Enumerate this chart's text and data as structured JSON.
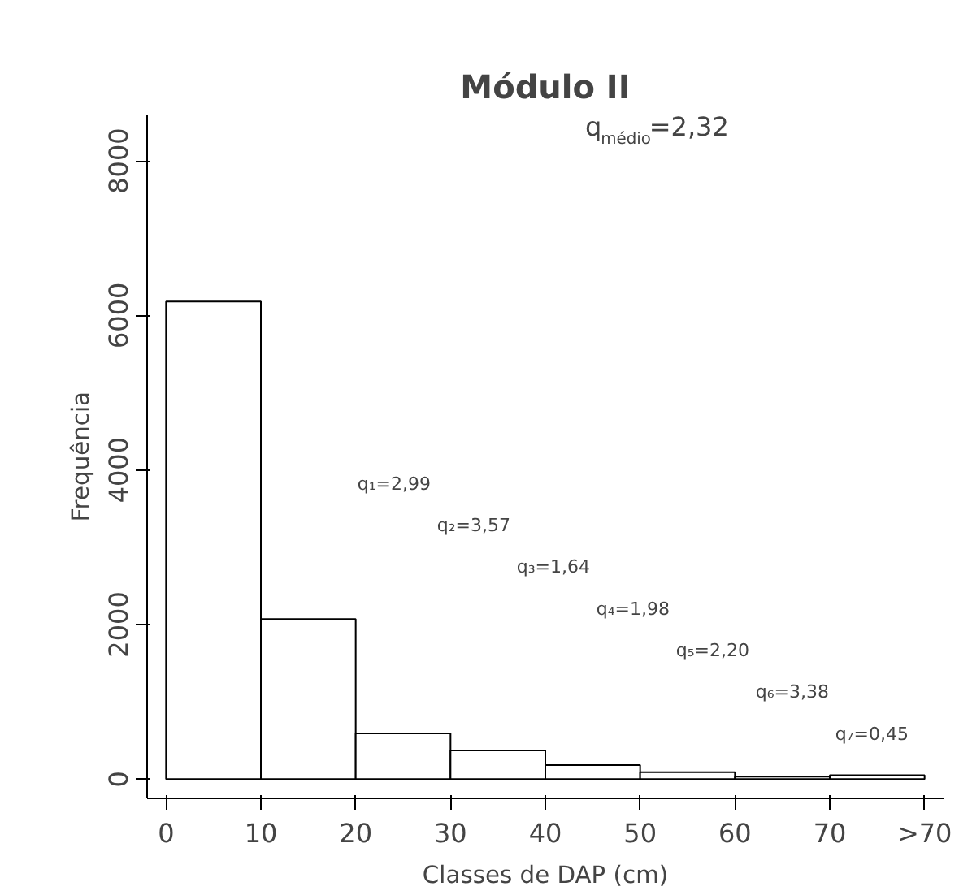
{
  "chart_data": {
    "type": "histogram",
    "title": "Módulo II",
    "xlabel": "Classes de DAP (cm)",
    "ylabel": "Frequência",
    "bins": [
      0,
      10,
      20,
      30,
      40,
      50,
      60,
      70,
      80
    ],
    "values": [
      6180,
      2070,
      590,
      370,
      180,
      90,
      30,
      50
    ],
    "color": "#ffffff",
    "xlim": [
      -2,
      82
    ],
    "ylim": [
      -250,
      8600
    ],
    "xticks": [
      0,
      10,
      20,
      30,
      40,
      50,
      60,
      70,
      {
        "value": 80,
        "label": ">70"
      }
    ],
    "yticks": [
      0,
      2000,
      4000,
      6000,
      8000
    ],
    "grid": false,
    "annotations": [
      "q$_{médio}$=2,32",
      "q₁=2,99",
      "q₂=3,57",
      "q₃=1,64",
      "q₄=1,98",
      "q₅=2,20",
      "q₆=3,38",
      "q₇=0,45"
    ]
  }
}
